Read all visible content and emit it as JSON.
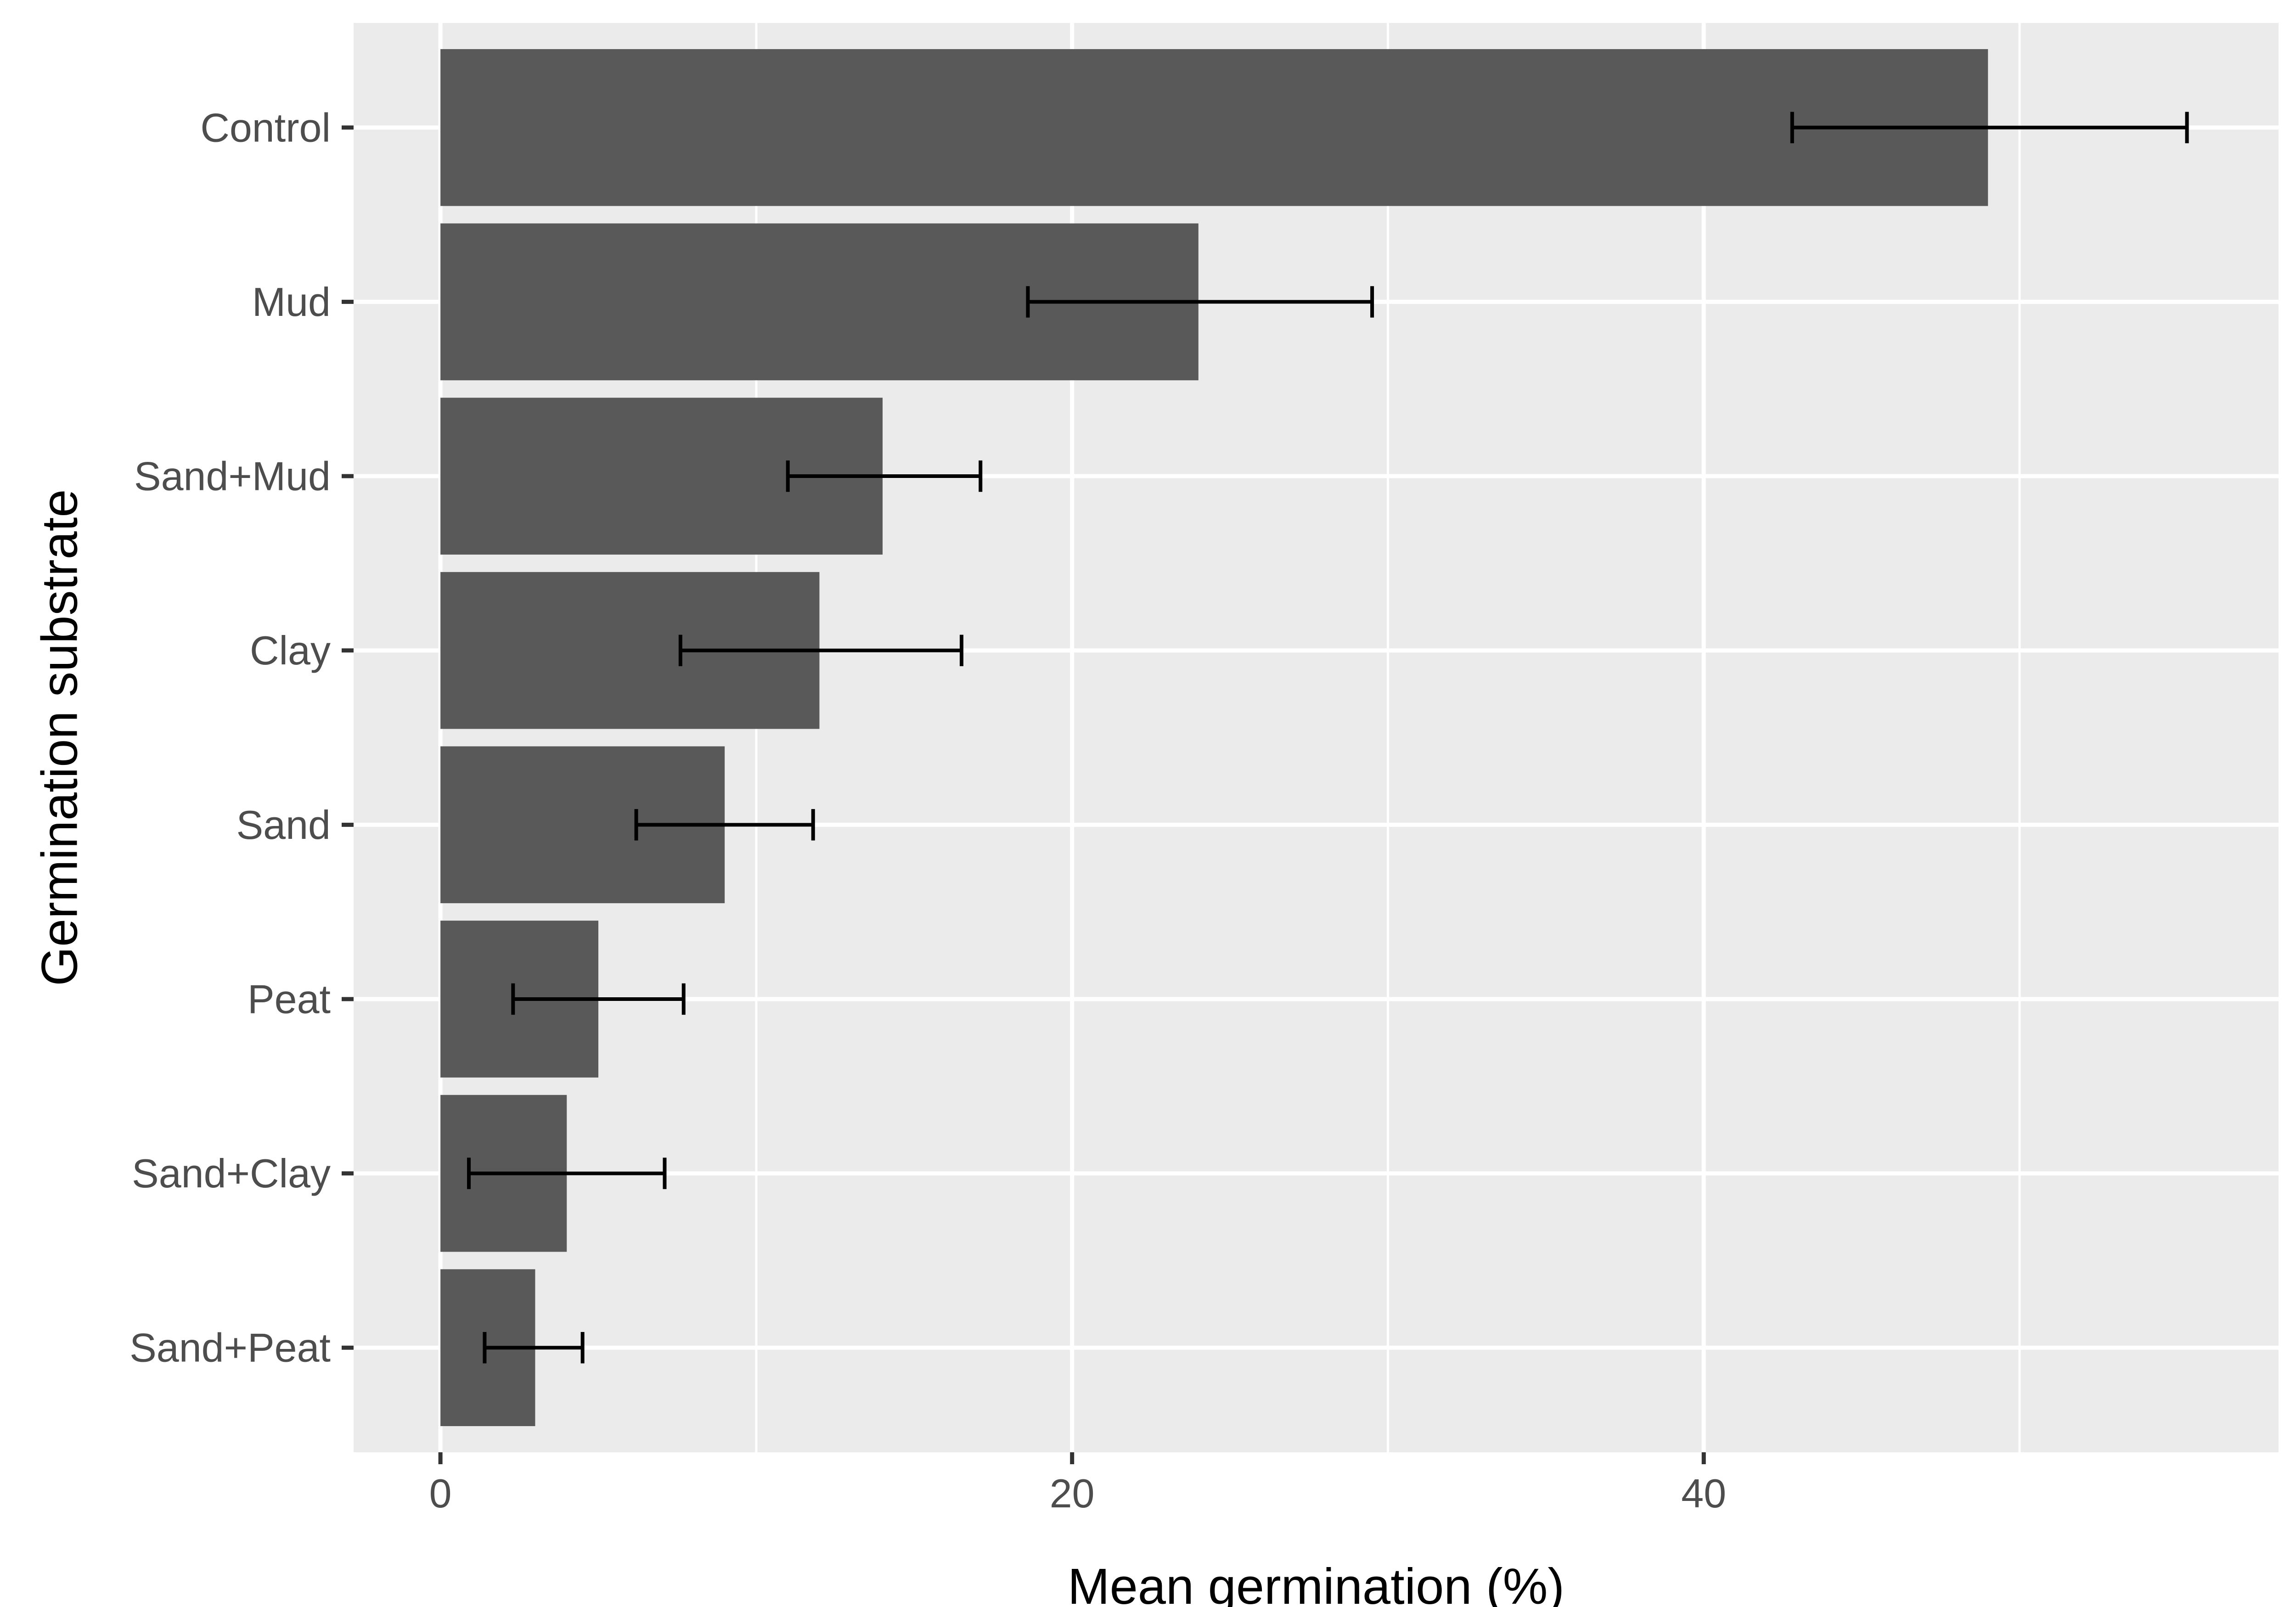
{
  "chart_data": {
    "type": "bar",
    "orientation": "horizontal",
    "xlabel": "Mean germination (%)",
    "ylabel": "Germination substrate",
    "xlim": [
      -2.75,
      58.2
    ],
    "xticks": [
      0,
      20,
      40
    ],
    "grid": true,
    "categories": [
      "Control",
      "Mud",
      "Sand+Mud",
      "Clay",
      "Sand",
      "Peat",
      "Sand+Clay",
      "Sand+Peat"
    ],
    "values": [
      49,
      24,
      14,
      12,
      9,
      5,
      4,
      3
    ],
    "error_low": [
      42.8,
      18.6,
      11.0,
      7.6,
      6.2,
      2.3,
      0.9,
      1.4
    ],
    "error_high": [
      55.3,
      29.5,
      17.1,
      16.5,
      11.8,
      7.7,
      7.1,
      4.5
    ],
    "bar_color": "#595959",
    "panel_color": "#ebebeb",
    "grid_color": "#ffffff",
    "error_color": "#000000"
  }
}
